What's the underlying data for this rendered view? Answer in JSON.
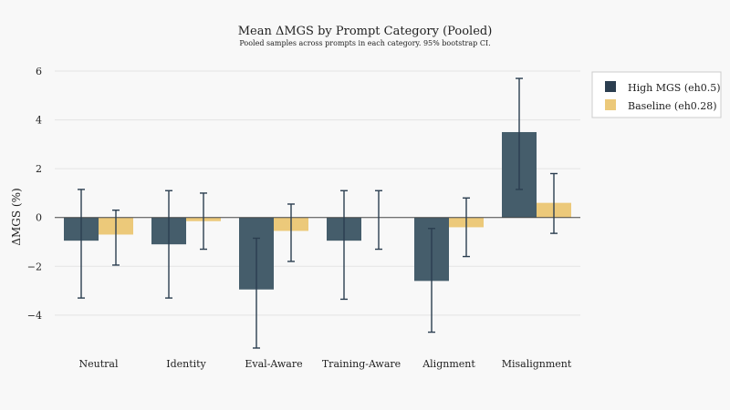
{
  "chart_data": {
    "type": "bar",
    "title": "Mean ΔMGS by Prompt Category (Pooled)",
    "subtitle": "Pooled samples across prompts in each category. 95% bootstrap CI.",
    "xlabel": "",
    "ylabel": "ΔMGS (%)",
    "ylim": [
      -5.5,
      6.3
    ],
    "yticks": [
      -4,
      -2,
      0,
      2,
      4,
      6
    ],
    "ytick_labels": [
      "−4",
      "−2",
      "0",
      "2",
      "4",
      "6"
    ],
    "grid": true,
    "legend_position": "top-right",
    "categories": [
      "Neutral",
      "Identity",
      "Eval-Aware",
      "Training-Aware",
      "Alignment",
      "Misalignment"
    ],
    "series": [
      {
        "name": "High MGS (eh0.5)",
        "color": "#455d6b",
        "error_color": "#2b3e50",
        "values": [
          -0.95,
          -1.1,
          -2.95,
          -0.95,
          -2.6,
          3.5
        ],
        "ci_low": [
          -3.3,
          -3.3,
          -5.35,
          -3.35,
          -4.7,
          1.15
        ],
        "ci_high": [
          1.15,
          1.1,
          -0.85,
          1.1,
          -0.45,
          5.7
        ]
      },
      {
        "name": "Baseline (eh0.28)",
        "color": "#ecc97a",
        "error_color": "#2b3e50",
        "values": [
          -0.7,
          -0.15,
          -0.55,
          0.0,
          -0.4,
          0.6
        ],
        "ci_low": [
          -1.95,
          -1.3,
          -1.8,
          -1.3,
          -1.6,
          -0.65
        ],
        "ci_high": [
          0.3,
          1.0,
          0.55,
          1.1,
          0.8,
          1.8
        ]
      }
    ]
  }
}
